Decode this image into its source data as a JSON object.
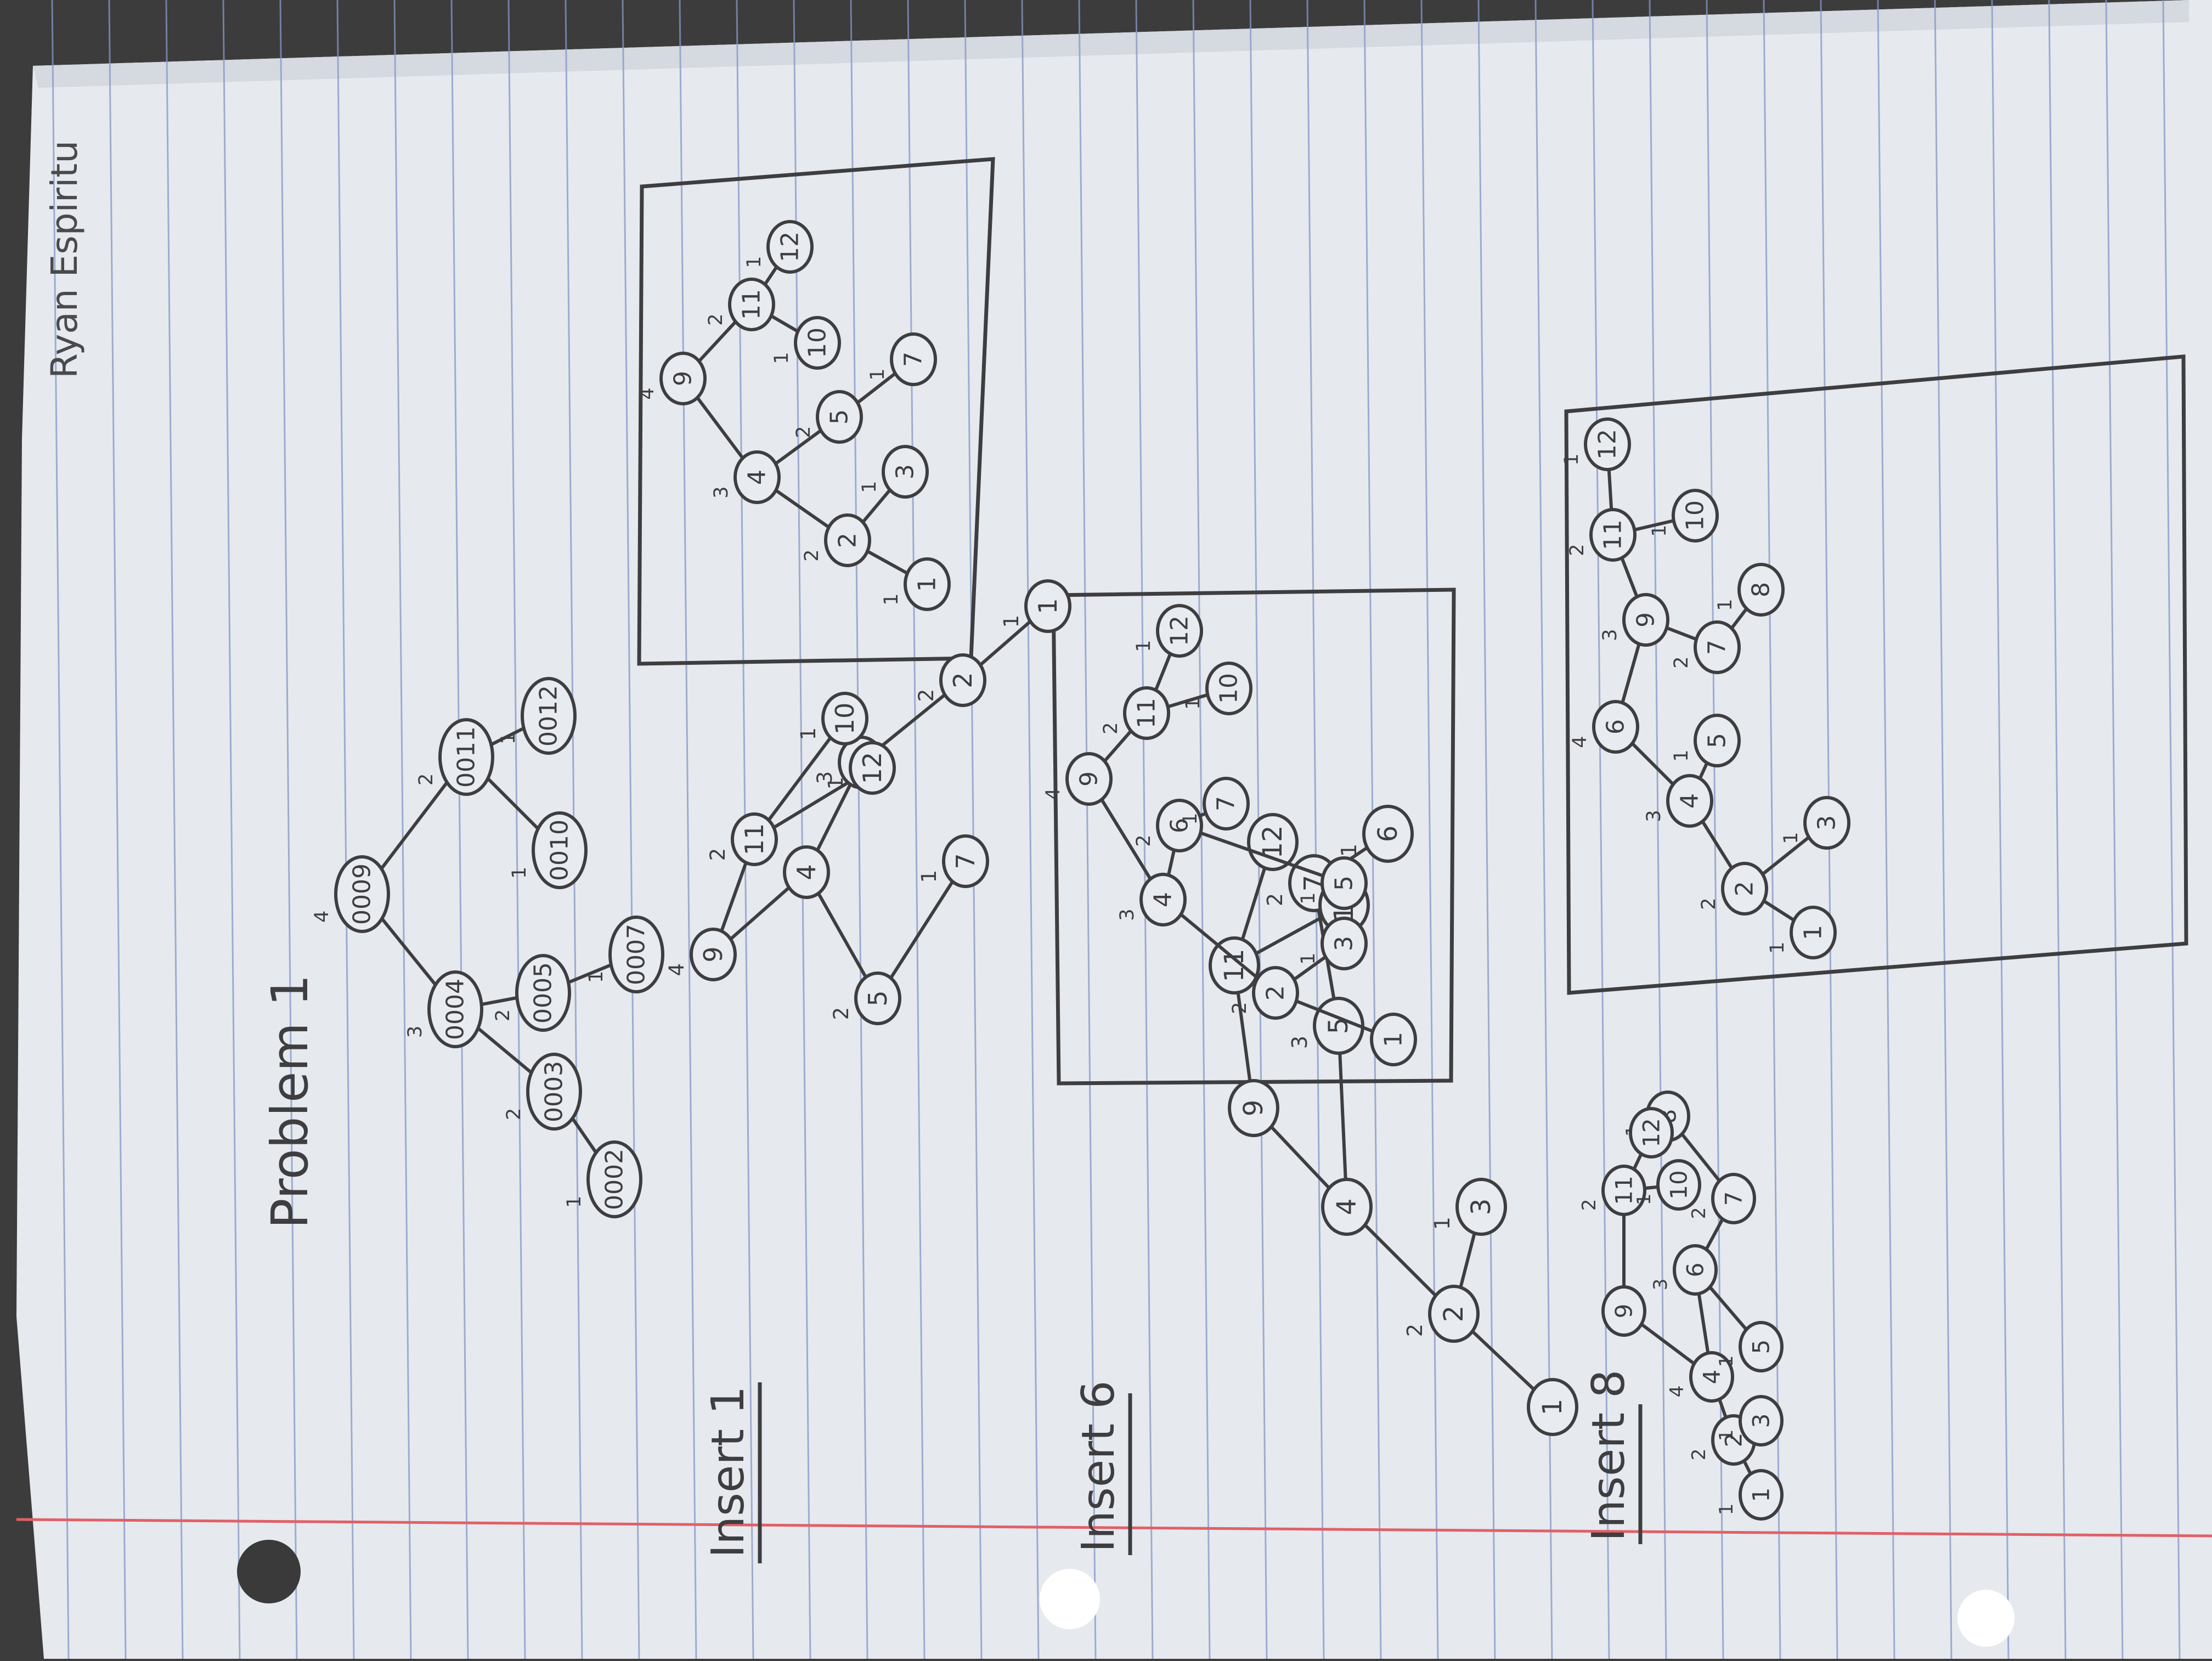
{
  "author": "Ryan Espiritu",
  "title": "Problem 1",
  "headings": {
    "insert_1": "Insert 1",
    "insert_6": "Insert 6",
    "insert_8": "Insert 8"
  },
  "colors": {
    "paper": "#e8ebf0",
    "rule_line": "#7f93c4",
    "margin_line": "#e25c64",
    "pencil": "#3e3e40"
  },
  "trees": [
    {
      "id": "original",
      "nodes": [
        {
          "id": "n9",
          "label": "0009",
          "height": "4"
        },
        {
          "id": "n4",
          "label": "0004",
          "height": "3"
        },
        {
          "id": "n11",
          "label": "0011",
          "height": "2"
        },
        {
          "id": "n3",
          "label": "0003",
          "height": "2"
        },
        {
          "id": "n5",
          "label": "0005",
          "height": "2"
        },
        {
          "id": "n10",
          "label": "0010",
          "height": "1"
        },
        {
          "id": "n12",
          "label": "0012",
          "height": "1"
        },
        {
          "id": "n2",
          "label": "0002",
          "height": "1"
        },
        {
          "id": "n7",
          "label": "0007",
          "height": "1"
        }
      ]
    },
    {
      "id": "insert-1-unbalanced",
      "nodes": [
        {
          "id": "n9",
          "label": "9",
          "height": "4"
        },
        {
          "id": "n4",
          "label": "4",
          "height": ""
        },
        {
          "id": "n11",
          "label": "11",
          "height": "2"
        },
        {
          "id": "n3",
          "label": "3",
          "height": "3"
        },
        {
          "id": "n5",
          "label": "5",
          "height": "2"
        },
        {
          "id": "n2",
          "label": "2",
          "height": "2"
        },
        {
          "id": "n1",
          "label": "1",
          "height": "1"
        },
        {
          "id": "n7",
          "label": "7",
          "height": "1"
        },
        {
          "id": "n10",
          "label": "10",
          "height": "1"
        },
        {
          "id": "n12",
          "label": "12",
          "height": "1"
        }
      ]
    },
    {
      "id": "insert-1-balanced",
      "nodes": [
        {
          "id": "n9",
          "label": "9",
          "height": "4"
        },
        {
          "id": "n4",
          "label": "4",
          "height": "3"
        },
        {
          "id": "n11",
          "label": "11",
          "height": "2"
        },
        {
          "id": "n2",
          "label": "2",
          "height": "2"
        },
        {
          "id": "n5",
          "label": "5",
          "height": "2"
        },
        {
          "id": "n1",
          "label": "1",
          "height": "1"
        },
        {
          "id": "n3",
          "label": "3",
          "height": "1"
        },
        {
          "id": "n7",
          "label": "7",
          "height": "1"
        },
        {
          "id": "n10",
          "label": "10",
          "height": "1"
        },
        {
          "id": "n12",
          "label": "12",
          "height": "1"
        }
      ]
    },
    {
      "id": "insert-6-unbalanced",
      "nodes": [
        {
          "id": "n9",
          "label": "9",
          "height": ""
        },
        {
          "id": "n4",
          "label": "4",
          "height": ""
        },
        {
          "id": "n11",
          "label": "11",
          "height": ""
        },
        {
          "id": "n2",
          "label": "2",
          "height": "2"
        },
        {
          "id": "n5",
          "label": "5",
          "height": "3"
        },
        {
          "id": "n1",
          "label": "1",
          "height": ""
        },
        {
          "id": "n3",
          "label": "3",
          "height": "1"
        },
        {
          "id": "n7",
          "label": "7",
          "height": "2"
        },
        {
          "id": "n6",
          "label": "6",
          "height": "1"
        },
        {
          "id": "n10",
          "label": "10",
          "height": ""
        },
        {
          "id": "n12",
          "label": "12",
          "height": ""
        }
      ]
    },
    {
      "id": "insert-6-balanced",
      "nodes": [
        {
          "id": "n9",
          "label": "9",
          "height": "4"
        },
        {
          "id": "n4",
          "label": "4",
          "height": "3"
        },
        {
          "id": "n11",
          "label": "11",
          "height": "2"
        },
        {
          "id": "n2",
          "label": "2",
          "height": "2"
        },
        {
          "id": "n6",
          "label": "6",
          "height": "2"
        },
        {
          "id": "n1",
          "label": "1",
          "height": ""
        },
        {
          "id": "n3",
          "label": "3",
          "height": "1"
        },
        {
          "id": "n5",
          "label": "5",
          "height": "1"
        },
        {
          "id": "n7",
          "label": "7",
          "height": "1"
        },
        {
          "id": "n10",
          "label": "10",
          "height": "1"
        },
        {
          "id": "n12",
          "label": "12",
          "height": "1"
        }
      ]
    },
    {
      "id": "insert-8-unbalanced",
      "nodes": [
        {
          "id": "n9",
          "label": "9",
          "height": ""
        },
        {
          "id": "n4",
          "label": "4",
          "height": "4"
        },
        {
          "id": "n11",
          "label": "11",
          "height": "2"
        },
        {
          "id": "n2",
          "label": "2",
          "height": "2"
        },
        {
          "id": "n6",
          "label": "6",
          "height": "3"
        },
        {
          "id": "n1",
          "label": "1",
          "height": "1"
        },
        {
          "id": "n3",
          "label": "3",
          "height": "1"
        },
        {
          "id": "n5",
          "label": "5",
          "height": "1"
        },
        {
          "id": "n7",
          "label": "7",
          "height": "2"
        },
        {
          "id": "n8",
          "label": "8",
          "height": "1"
        },
        {
          "id": "n10",
          "label": "10",
          "height": "1"
        },
        {
          "id": "n12",
          "label": "12",
          "height": ""
        }
      ]
    },
    {
      "id": "insert-8-balanced",
      "nodes": [
        {
          "id": "n6",
          "label": "6",
          "height": "4"
        },
        {
          "id": "n4",
          "label": "4",
          "height": "3"
        },
        {
          "id": "n9",
          "label": "9",
          "height": "3"
        },
        {
          "id": "n2",
          "label": "2",
          "height": "2"
        },
        {
          "id": "n5",
          "label": "5",
          "height": "1"
        },
        {
          "id": "n7",
          "label": "7",
          "height": "2"
        },
        {
          "id": "n11",
          "label": "11",
          "height": "2"
        },
        {
          "id": "n1",
          "label": "1",
          "height": "1"
        },
        {
          "id": "n3",
          "label": "3",
          "height": "1"
        },
        {
          "id": "n8",
          "label": "8",
          "height": "1"
        },
        {
          "id": "n10",
          "label": "10",
          "height": "1"
        },
        {
          "id": "n12",
          "label": "12",
          "height": "1"
        }
      ]
    }
  ]
}
